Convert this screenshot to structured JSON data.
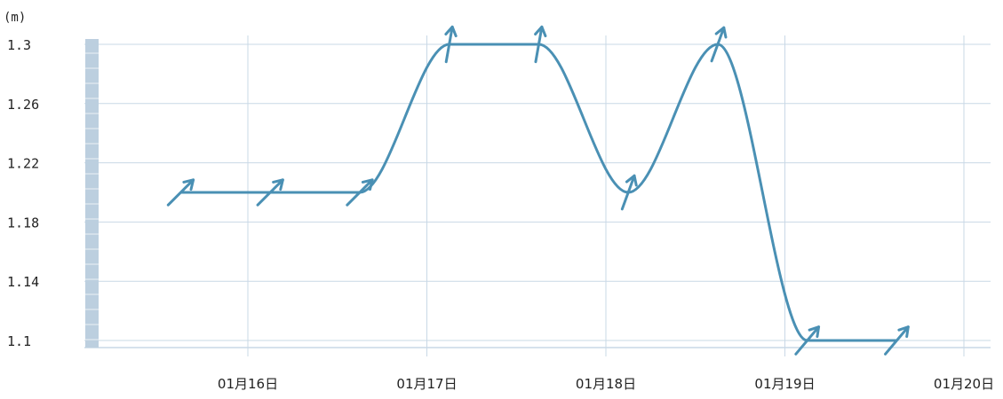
{
  "chart_data": {
    "type": "line",
    "ylabel": "(m)",
    "ylim": [
      1.1,
      1.3
    ],
    "yticks": [
      "1.3",
      "1.26",
      "1.22",
      "1.18",
      "1.14",
      "1.1"
    ],
    "xticks": [
      "01月16日",
      "01月17日",
      "01月18日",
      "01月19日",
      "01月20日"
    ],
    "grid": true,
    "series": [
      {
        "values": [
          {
            "x": "01-15 15:00",
            "y": 1.2
          },
          {
            "x": "01-16 03:00",
            "y": 1.2
          },
          {
            "x": "01-16 15:00",
            "y": 1.2
          },
          {
            "x": "01-17 03:00",
            "y": 1.3
          },
          {
            "x": "01-17 15:00",
            "y": 1.3
          },
          {
            "x": "01-18 03:00",
            "y": 1.2
          },
          {
            "x": "01-18 15:00",
            "y": 1.3
          },
          {
            "x": "01-19 03:00",
            "y": 1.1
          },
          {
            "x": "01-19 15:00",
            "y": 1.1
          }
        ],
        "direction_arrows": [
          {
            "x": "01-15 15:00",
            "angle": 45
          },
          {
            "x": "01-16 03:00",
            "angle": 45
          },
          {
            "x": "01-16 15:00",
            "angle": 45
          },
          {
            "x": "01-17 03:00",
            "angle": 10
          },
          {
            "x": "01-17 15:00",
            "angle": 10
          },
          {
            "x": "01-18 03:00",
            "angle": 20
          },
          {
            "x": "01-18 15:00",
            "angle": 20
          },
          {
            "x": "01-19 03:00",
            "angle": 40
          },
          {
            "x": "01-19 15:00",
            "angle": 40
          }
        ]
      }
    ]
  },
  "colors": {
    "line": "#4a90b4",
    "grid": "#c9d8e6",
    "axis_bar": "#bccfdf"
  }
}
